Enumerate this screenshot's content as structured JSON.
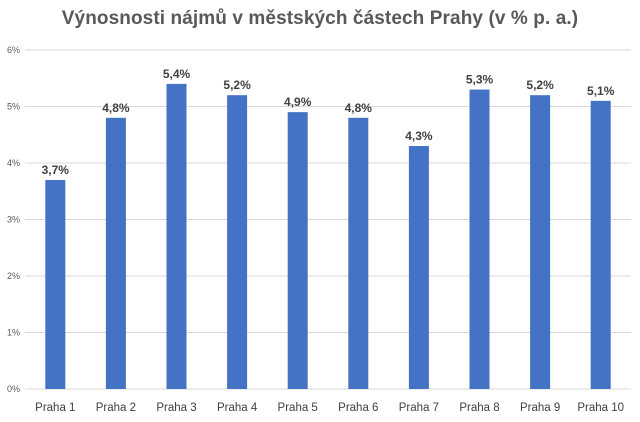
{
  "chart_data": {
    "type": "bar",
    "title": "Výnosnosti nájmů v městských částech Prahy (v % p. a.)",
    "xlabel": "",
    "ylabel": "",
    "categories": [
      "Praha 1",
      "Praha 2",
      "Praha 3",
      "Praha 4",
      "Praha 5",
      "Praha 6",
      "Praha 7",
      "Praha 8",
      "Praha 9",
      "Praha 10"
    ],
    "values": [
      3.7,
      4.8,
      5.4,
      5.2,
      4.9,
      4.8,
      4.3,
      5.3,
      5.2,
      5.1
    ],
    "data_labels": [
      "3,7%",
      "4,8%",
      "5,4%",
      "5,2%",
      "4,9%",
      "4,8%",
      "4,3%",
      "5,3%",
      "5,2%",
      "5,1%"
    ],
    "ylim": [
      0,
      6
    ],
    "yticks": [
      0,
      1,
      2,
      3,
      4,
      5,
      6
    ],
    "ytick_labels": [
      "0%",
      "1%",
      "2%",
      "3%",
      "4%",
      "5%",
      "6%"
    ],
    "grid": true,
    "legend": "none",
    "colors": {
      "bar": "#4472C4",
      "grid": "#D9D9D9",
      "text": "#595959"
    }
  }
}
